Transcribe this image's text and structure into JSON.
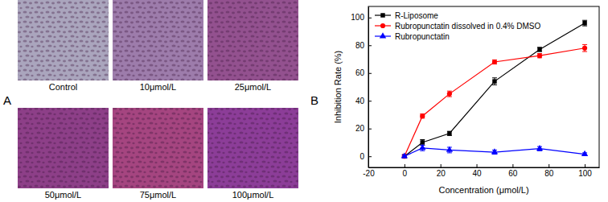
{
  "panel_a": {
    "label": "A",
    "captions": [
      "Control",
      "10μmol/L",
      "25μmol/L",
      "50μmol/L",
      "75μmol/L",
      "100μmol/L"
    ]
  },
  "panel_b": {
    "label": "B"
  },
  "chart_data": {
    "type": "line",
    "x_label": "Concentration (μmol/L)",
    "y_label": "Inhibition Rate (%)",
    "x": [
      0,
      10,
      25,
      50,
      75,
      100
    ],
    "series": [
      {
        "name": "R-Liposome",
        "color": "#000000",
        "marker": "square",
        "values": [
          0,
          10,
          16.5,
          54,
          77,
          96
        ],
        "errors": [
          1,
          2,
          1.5,
          2.5,
          1.5,
          2
        ]
      },
      {
        "name": "Rubropunctatin dissolved in 0.4% DMSO",
        "color": "#ff0000",
        "marker": "circle",
        "values": [
          0,
          29,
          45,
          68,
          72.5,
          78
        ],
        "errors": [
          1,
          1.5,
          2,
          1.5,
          1.5,
          2.5
        ]
      },
      {
        "name": "Rubropunctatin",
        "color": "#0000ff",
        "marker": "triangle",
        "values": [
          0,
          6,
          4.5,
          3,
          5.5,
          1.5
        ],
        "errors": [
          1,
          2,
          2,
          1.5,
          1.5,
          1
        ]
      }
    ],
    "xlim": [
      -20,
      108
    ],
    "xticks": [
      -20,
      0,
      20,
      40,
      60,
      80,
      100
    ],
    "ylim": [
      -8,
      108
    ],
    "yticks": [
      0,
      20,
      40,
      60,
      80,
      100
    ],
    "legend": "upper left",
    "grid": false
  }
}
